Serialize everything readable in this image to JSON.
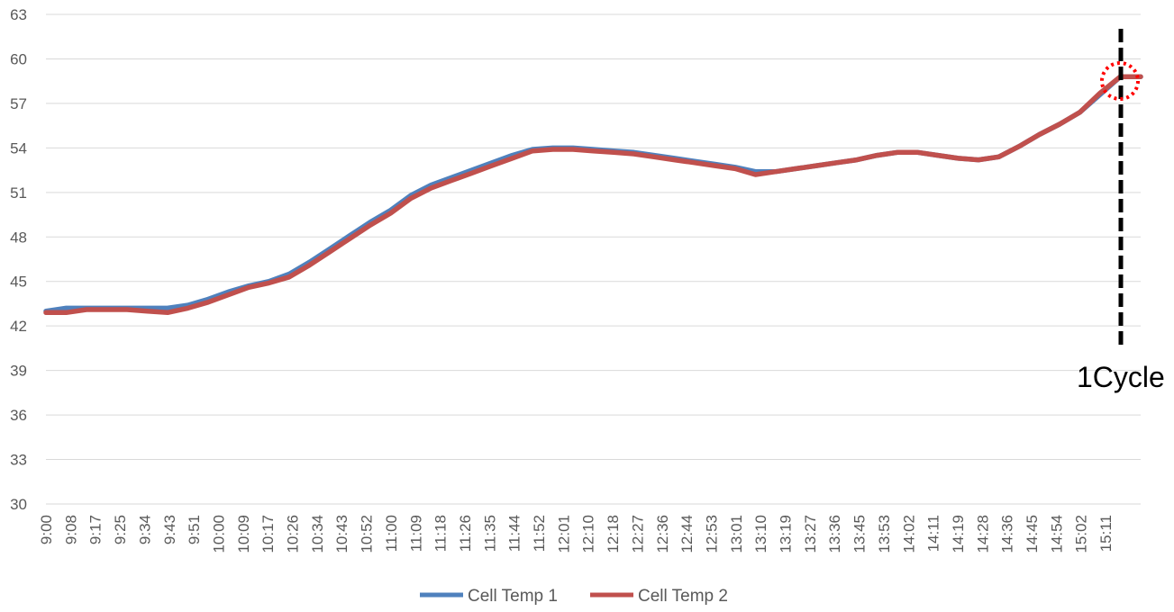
{
  "chart_data": {
    "type": "line",
    "title": "",
    "xlabel": "",
    "ylabel": "",
    "ylim": [
      30,
      63
    ],
    "y_ticks": [
      "30",
      "33",
      "36",
      "39",
      "42",
      "45",
      "48",
      "51",
      "54",
      "57",
      "60",
      "63"
    ],
    "x_ticks": [
      "9:00",
      "9:08",
      "9:17",
      "9:25",
      "9:34",
      "9:43",
      "9:51",
      "10:00",
      "10:09",
      "10:17",
      "10:26",
      "10:34",
      "10:43",
      "10:52",
      "11:00",
      "11:09",
      "11:18",
      "11:26",
      "11:35",
      "11:44",
      "11:52",
      "12:01",
      "12:10",
      "12:18",
      "12:27",
      "12:36",
      "12:44",
      "12:53",
      "13:01",
      "13:10",
      "13:19",
      "13:27",
      "13:36",
      "13:45",
      "13:53",
      "14:02",
      "14:11",
      "14:19",
      "14:28",
      "14:36",
      "14:45",
      "14:54",
      "15:02",
      "15:11"
    ],
    "grid": true,
    "legend_position": "bottom",
    "series": [
      {
        "name": "Cell Temp 1",
        "color": "#4F81BD",
        "values": [
          43.0,
          43.2,
          43.2,
          43.2,
          43.2,
          43.2,
          43.2,
          43.4,
          43.8,
          44.3,
          44.7,
          45.0,
          45.5,
          46.3,
          47.2,
          48.1,
          49.0,
          49.8,
          50.8,
          51.5,
          52.0,
          52.5,
          53.0,
          53.5,
          53.9,
          54.0,
          54.0,
          53.9,
          53.8,
          53.7,
          53.5,
          53.3,
          53.1,
          52.9,
          52.7,
          52.4,
          52.4,
          52.6,
          52.8,
          53.0,
          53.2,
          53.5,
          53.7,
          53.7,
          53.5,
          53.3,
          53.2,
          53.4,
          54.1,
          54.9,
          55.6,
          56.4,
          57.6,
          58.8,
          58.8
        ]
      },
      {
        "name": "Cell Temp 2",
        "color": "#C0504D",
        "values": [
          42.9,
          42.9,
          43.1,
          43.1,
          43.1,
          43.0,
          42.9,
          43.2,
          43.6,
          44.1,
          44.6,
          44.9,
          45.3,
          46.1,
          47.0,
          47.9,
          48.8,
          49.6,
          50.6,
          51.3,
          51.8,
          52.3,
          52.8,
          53.3,
          53.8,
          53.9,
          53.9,
          53.8,
          53.7,
          53.6,
          53.4,
          53.2,
          53.0,
          52.8,
          52.6,
          52.2,
          52.4,
          52.6,
          52.8,
          53.0,
          53.2,
          53.5,
          53.7,
          53.7,
          53.5,
          53.3,
          53.2,
          53.4,
          54.1,
          54.9,
          55.6,
          56.4,
          57.7,
          58.8,
          58.8
        ]
      }
    ],
    "annotations": [
      {
        "text": "1Cycle",
        "at_x_index": 53.3,
        "style": "black dashed vertical line with red dotted circle at peak"
      }
    ]
  }
}
